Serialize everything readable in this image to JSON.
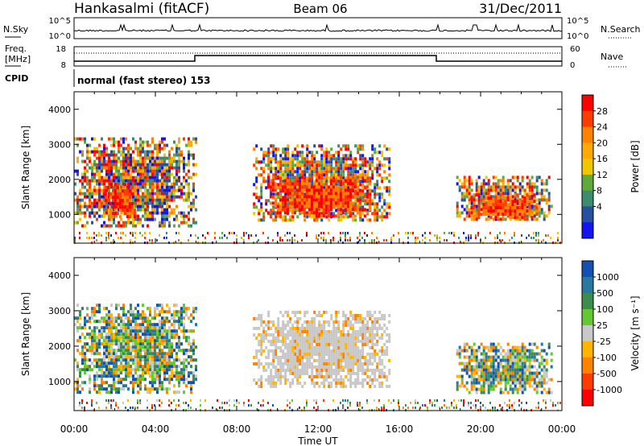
{
  "header": {
    "station": "Hankasalmi (fitACF)",
    "beam": "Beam 06",
    "date": "31/Dec/2011"
  },
  "nsky_panel": {
    "left_label": "N.Sky",
    "right_label": "N.Search",
    "left_ticks": [
      "10^5",
      "10^0"
    ],
    "right_ticks": [
      "10^5",
      "10^0"
    ]
  },
  "freq_panel": {
    "left_label_line1": "Freq.",
    "left_label_line2": "[MHz]",
    "right_label": "Nave",
    "left_ticks": [
      "18",
      "8"
    ],
    "right_ticks": [
      "60",
      "0"
    ]
  },
  "cpid_panel": {
    "label": "CPID",
    "value": "normal (fast stereo) 153"
  },
  "x_axis": {
    "label": "Time UT",
    "ticks": [
      "00:00",
      "04:00",
      "08:00",
      "12:00",
      "16:00",
      "20:00",
      "00:00"
    ]
  },
  "chart_data": [
    {
      "type": "heatmap",
      "variable": "power",
      "ylabel": "Slant Range [km]",
      "ylim": [
        180,
        4500
      ],
      "yticks": [
        1000,
        2000,
        3000,
        4000
      ],
      "xlim": [
        0,
        24
      ],
      "colorbar": {
        "label": "Power [dB]",
        "ticks": [
          "28",
          "24",
          "20",
          "16",
          "12",
          "8",
          "4"
        ],
        "colors": [
          "#ff0000",
          "#ff3c00",
          "#ff8200",
          "#ffaa00",
          "#f0c800",
          "#5faa3c",
          "#3c8c6e",
          "#2850a0",
          "#1414f0"
        ]
      },
      "regions": [
        {
          "t0": 0.0,
          "t1": 6.0,
          "r0": 700,
          "r1": 3200,
          "level": "mixed"
        },
        {
          "t0": 1.5,
          "t1": 3.0,
          "r0": 900,
          "r1": 1900,
          "level": "high"
        },
        {
          "t0": 8.8,
          "t1": 15.5,
          "r0": 850,
          "r1": 3000,
          "level": "mixed"
        },
        {
          "t0": 9.5,
          "t1": 14.5,
          "r0": 950,
          "r1": 2100,
          "level": "high"
        },
        {
          "t0": 18.8,
          "t1": 23.5,
          "r0": 850,
          "r1": 2100,
          "level": "mixed"
        },
        {
          "t0": 19.5,
          "t1": 22.8,
          "r0": 900,
          "r1": 1600,
          "level": "high"
        }
      ]
    },
    {
      "type": "heatmap",
      "variable": "velocity",
      "ylabel": "Slant Range [km]",
      "ylim": [
        180,
        4500
      ],
      "yticks": [
        1000,
        2000,
        3000,
        4000
      ],
      "xlim": [
        0,
        24
      ],
      "colorbar": {
        "label": "Velocity [m s⁻¹]",
        "ticks": [
          "1000",
          "500",
          "100",
          "25",
          "-25",
          "-100",
          "-500",
          "-1000"
        ],
        "colors": [
          "#1450b4",
          "#2878a0",
          "#3c8c50",
          "#64c832",
          "#c8c8c8",
          "#ffb400",
          "#ff8200",
          "#ff3c00",
          "#ff0000"
        ]
      },
      "regions": [
        {
          "t0": 0.0,
          "t1": 6.0,
          "r0": 700,
          "r1": 3200,
          "level": "mixed"
        },
        {
          "t0": 8.8,
          "t1": 15.5,
          "r0": 850,
          "r1": 3000,
          "level": "ground"
        },
        {
          "t0": 18.8,
          "t1": 23.5,
          "r0": 700,
          "r1": 2100,
          "level": "mixed"
        }
      ]
    }
  ]
}
